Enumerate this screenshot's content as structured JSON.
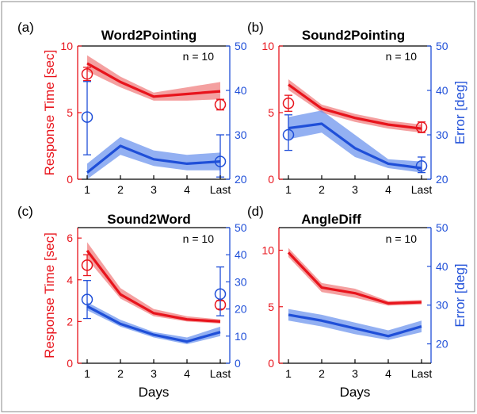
{
  "colors": {
    "response": "#e8141c",
    "response_band": "#f08080",
    "error": "#1f4fd8",
    "error_band": "#6f95ee",
    "axis": "#000000"
  },
  "x_axis": {
    "tick_labels": [
      "1",
      "2",
      "3",
      "4",
      "Last"
    ],
    "xlabel": "Days"
  },
  "chart_data": [
    {
      "type": "line",
      "panel_letter": "(a)",
      "title": "Word2Pointing",
      "annotation": "n = 10",
      "x": [
        1,
        2,
        3,
        4,
        5
      ],
      "left_axis": {
        "label": "Response Time [sec]",
        "ylim": [
          0,
          10
        ],
        "ticks": [
          "0",
          "5",
          "10"
        ],
        "tick_values": [
          0,
          5,
          10
        ],
        "color": "#e8141c"
      },
      "right_axis": {
        "label": "",
        "ylim": [
          20,
          50
        ],
        "ticks": [
          "20",
          "30",
          "40",
          "50"
        ],
        "tick_values": [
          20,
          30,
          40,
          50
        ],
        "color": "#1f4fd8"
      },
      "series": [
        {
          "axis": "left",
          "color": "#e8141c",
          "x": [
            1,
            2,
            3,
            4,
            5
          ],
          "mean": [
            8.7,
            7.3,
            6.2,
            6.4,
            6.6
          ],
          "band_low": [
            8.1,
            6.9,
            5.9,
            5.9,
            6.0
          ],
          "band_high": [
            9.3,
            7.7,
            6.5,
            6.9,
            7.3
          ],
          "markers": [
            {
              "x": 1,
              "y": 7.9,
              "err_low": 7.4,
              "err_high": 8.4
            },
            {
              "x": 5,
              "y": 5.6,
              "err_low": 5.2,
              "err_high": 6.0
            }
          ]
        },
        {
          "axis": "right",
          "color": "#1f4fd8",
          "x": [
            1,
            2,
            3,
            4,
            5
          ],
          "mean": [
            21.5,
            27.5,
            24.5,
            23.5,
            24.0
          ],
          "band_low": [
            20.0,
            25.5,
            23.0,
            22.0,
            22.0
          ],
          "band_high": [
            23.5,
            29.5,
            26.5,
            25.5,
            26.0
          ],
          "markers": [
            {
              "x": 1,
              "y": 34.0,
              "err_low": 25.5,
              "err_high": 42.0
            },
            {
              "x": 5,
              "y": 24.0,
              "err_low": 20.5,
              "err_high": 30.0
            }
          ]
        }
      ]
    },
    {
      "type": "line",
      "panel_letter": "(b)",
      "title": "Sound2Pointing",
      "annotation": "n = 10",
      "x": [
        1,
        2,
        3,
        4,
        5
      ],
      "left_axis": {
        "label": "",
        "ylim": [
          0,
          10
        ],
        "ticks": [
          "0",
          "5",
          "10"
        ],
        "tick_values": [
          0,
          5,
          10
        ],
        "color": "#e8141c"
      },
      "right_axis": {
        "label": "Error [deg]",
        "ylim": [
          20,
          50
        ],
        "ticks": [
          "20",
          "30",
          "40",
          "50"
        ],
        "tick_values": [
          20,
          30,
          40,
          50
        ],
        "color": "#1f4fd8"
      },
      "series": [
        {
          "axis": "left",
          "color": "#e8141c",
          "x": [
            1,
            2,
            3,
            4,
            5
          ],
          "mean": [
            7.1,
            5.3,
            4.6,
            4.1,
            3.8
          ],
          "band_low": [
            6.7,
            5.0,
            4.3,
            3.8,
            3.5
          ],
          "band_high": [
            7.5,
            5.6,
            4.9,
            4.4,
            4.1
          ],
          "markers": [
            {
              "x": 1,
              "y": 5.7,
              "err_low": 5.1,
              "err_high": 6.3
            },
            {
              "x": 5,
              "y": 3.9,
              "err_low": 3.5,
              "err_high": 4.3
            }
          ]
        },
        {
          "axis": "right",
          "color": "#1f4fd8",
          "x": [
            1,
            2,
            3,
            4,
            5
          ],
          "mean": [
            31.5,
            32.5,
            27.0,
            23.5,
            22.5
          ],
          "band_low": [
            29.0,
            30.5,
            25.0,
            22.5,
            21.5
          ],
          "band_high": [
            34.0,
            35.5,
            30.0,
            24.5,
            24.0
          ],
          "markers": [
            {
              "x": 1,
              "y": 30.0,
              "err_low": 26.5,
              "err_high": 34.5
            },
            {
              "x": 5,
              "y": 23.0,
              "err_low": 21.5,
              "err_high": 25.0
            }
          ]
        }
      ]
    },
    {
      "type": "line",
      "panel_letter": "(c)",
      "title": "Sound2Word",
      "annotation": "n = 10",
      "x": [
        1,
        2,
        3,
        4,
        5
      ],
      "left_axis": {
        "label": "Response Time [sec]",
        "ylim": [
          0,
          6.5
        ],
        "ticks": [
          "0",
          "2",
          "4",
          "6"
        ],
        "tick_values": [
          0,
          2,
          4,
          6
        ],
        "color": "#e8141c"
      },
      "right_axis": {
        "label": "",
        "ylim": [
          0,
          50
        ],
        "ticks": [
          "0",
          "10",
          "20",
          "30",
          "40",
          "50"
        ],
        "tick_values": [
          0,
          10,
          20,
          30,
          40,
          50
        ],
        "color": "#1f4fd8"
      },
      "series": [
        {
          "axis": "left",
          "color": "#e8141c",
          "x": [
            1,
            2,
            3,
            4,
            5
          ],
          "mean": [
            5.4,
            3.3,
            2.4,
            2.1,
            2.0
          ],
          "band_low": [
            5.0,
            3.1,
            2.25,
            2.0,
            1.9
          ],
          "band_high": [
            5.8,
            3.6,
            2.6,
            2.25,
            2.1
          ],
          "markers": [
            {
              "x": 1,
              "y": 4.7,
              "err_low": 4.2,
              "err_high": 5.2
            },
            {
              "x": 5,
              "y": 2.8,
              "err_low": 2.6,
              "err_high": 3.0
            }
          ]
        },
        {
          "axis": "right",
          "color": "#1f4fd8",
          "x": [
            1,
            2,
            3,
            4,
            5
          ],
          "mean": [
            21.0,
            14.5,
            10.5,
            8.0,
            11.5
          ],
          "band_low": [
            19.5,
            13.5,
            9.5,
            7.0,
            10.0
          ],
          "band_high": [
            22.5,
            16.0,
            11.5,
            9.5,
            13.5
          ],
          "markers": [
            {
              "x": 1,
              "y": 23.5,
              "err_low": 16.5,
              "err_high": 30.5
            },
            {
              "x": 5,
              "y": 25.5,
              "err_low": 17.5,
              "err_high": 35.5
            }
          ]
        }
      ]
    },
    {
      "type": "line",
      "panel_letter": "(d)",
      "title": "AngleDiff",
      "annotation": "n = 10",
      "x": [
        1,
        2,
        3,
        4,
        5
      ],
      "left_axis": {
        "label": "",
        "ylim": [
          0,
          12
        ],
        "ticks": [
          "0",
          "5",
          "10"
        ],
        "tick_values": [
          0,
          5,
          10
        ],
        "color": "#e8141c"
      },
      "right_axis": {
        "label": "Error [deg]",
        "ylim": [
          15,
          50
        ],
        "ticks": [
          "20",
          "30",
          "40",
          "50"
        ],
        "tick_values": [
          20,
          30,
          40,
          50
        ],
        "color": "#1f4fd8"
      },
      "series": [
        {
          "axis": "left",
          "color": "#e8141c",
          "x": [
            1,
            2,
            3,
            4,
            5
          ],
          "mean": [
            9.8,
            6.7,
            6.2,
            5.3,
            5.4
          ],
          "band_low": [
            9.4,
            6.3,
            5.8,
            5.1,
            5.2
          ],
          "band_high": [
            10.2,
            7.1,
            6.6,
            5.5,
            5.6
          ],
          "markers": []
        },
        {
          "axis": "right",
          "color": "#1f4fd8",
          "x": [
            1,
            2,
            3,
            4,
            5
          ],
          "mean": [
            27.5,
            26.0,
            24.0,
            22.0,
            24.5
          ],
          "band_low": [
            26.0,
            24.5,
            22.5,
            21.0,
            23.0
          ],
          "band_high": [
            29.0,
            27.5,
            25.5,
            23.5,
            26.0
          ],
          "markers": []
        }
      ]
    }
  ]
}
